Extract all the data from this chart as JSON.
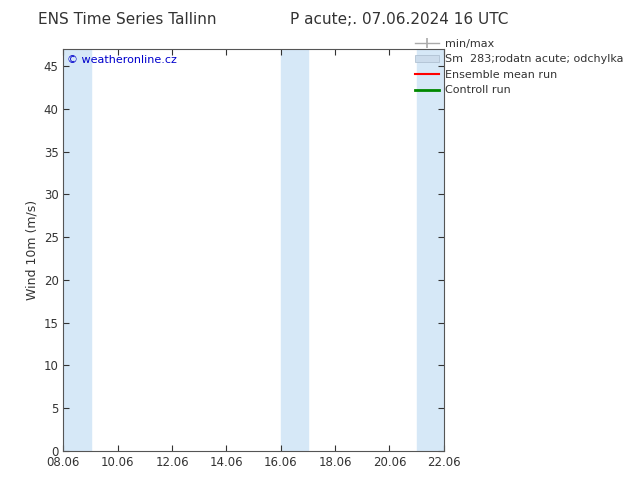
{
  "title_left": "ENS Time Series Tallinn",
  "title_right": "P acute;. 07.06.2024 16 UTC",
  "ylabel": "Wind 10m (m/s)",
  "watermark": "© weatheronline.cz",
  "watermark_color": "#0000cc",
  "x_ticks": [
    0,
    2,
    4,
    6,
    8,
    10,
    12,
    14
  ],
  "x_tick_labels": [
    "08.06",
    "10.06",
    "12.06",
    "14.06",
    "16.06",
    "18.06",
    "20.06",
    "22.06"
  ],
  "x_min": 0,
  "x_max": 14,
  "y_min": 0,
  "y_max": 47,
  "y_ticks": [
    0,
    5,
    10,
    15,
    20,
    25,
    30,
    35,
    40,
    45
  ],
  "background_color": "#ffffff",
  "plot_bg_color": "#ffffff",
  "shaded_bands": [
    {
      "x_start": 0.0,
      "x_end": 1.0,
      "color": "#d6e8f7",
      "alpha": 1.0
    },
    {
      "x_start": 8.0,
      "x_end": 9.0,
      "color": "#d6e8f7",
      "alpha": 1.0
    },
    {
      "x_start": 13.0,
      "x_end": 14.0,
      "color": "#d6e8f7",
      "alpha": 1.0
    }
  ],
  "legend_labels": [
    "min/max",
    "Sm  283;rodatn acute; odchylka",
    "Ensemble mean run",
    "Controll run"
  ],
  "legend_colors": [
    "#aaaaaa",
    "#ccdcec",
    "#ff0000",
    "#008800"
  ],
  "title_fontsize": 11,
  "axis_fontsize": 9,
  "tick_fontsize": 8.5,
  "legend_fontsize": 8
}
